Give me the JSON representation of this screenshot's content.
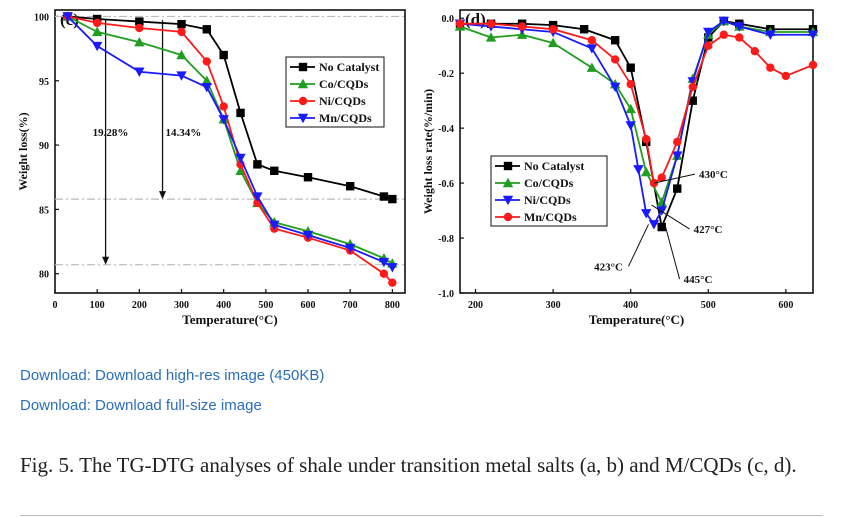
{
  "links": [
    "Download: Download high-res image (450KB)",
    "Download: Download full-size image"
  ],
  "caption": "Fig. 5. The TG-DTG analyses of shale under transition metal salts (a, b) and M/CQDs (c, d).",
  "colors": {
    "No Catalyst": "#000000",
    "Co/CQDs": "#1f9e1f",
    "Ni/CQDs_c": "#ff1a1a",
    "Mn/CQDs_c": "#1a1aff",
    "Ni/CQDs_d": "#1a1aff",
    "Mn/CQDs_d": "#ff1a1a"
  },
  "chart_data": [
    {
      "type": "line",
      "panel_label": "(c)",
      "xlabel": "Temperature(°C)",
      "ylabel": "Weight loss(%)",
      "xlim": [
        0,
        830
      ],
      "ylim": [
        78.5,
        100.5
      ],
      "xticks": [
        0,
        100,
        200,
        300,
        400,
        500,
        600,
        700,
        800
      ],
      "yticks": [
        80,
        85,
        90,
        95,
        100
      ],
      "legend_position": "top-right",
      "series": [
        {
          "name": "No Catalyst",
          "marker": "square",
          "x": [
            30,
            100,
            200,
            300,
            360,
            400,
            440,
            480,
            520,
            600,
            700,
            780,
            800
          ],
          "y": [
            100,
            99.8,
            99.6,
            99.4,
            99.0,
            97.0,
            92.5,
            88.5,
            88.0,
            87.5,
            86.8,
            86.0,
            85.8
          ]
        },
        {
          "name": "Co/CQDs",
          "marker": "triangle-up",
          "x": [
            30,
            100,
            200,
            300,
            360,
            400,
            440,
            480,
            520,
            600,
            700,
            780,
            800
          ],
          "y": [
            100,
            98.8,
            98.0,
            97.0,
            95.0,
            92.0,
            88.0,
            85.5,
            84.0,
            83.3,
            82.3,
            81.2,
            80.8
          ]
        },
        {
          "name": "Ni/CQDs",
          "marker": "circle",
          "x": [
            30,
            100,
            200,
            300,
            360,
            400,
            440,
            480,
            520,
            600,
            700,
            780,
            800
          ],
          "y": [
            100,
            99.5,
            99.1,
            98.8,
            96.5,
            93.0,
            88.5,
            85.5,
            83.5,
            82.8,
            81.8,
            80.0,
            79.3
          ]
        },
        {
          "name": "Mn/CQDs",
          "marker": "triangle-down",
          "x": [
            30,
            100,
            200,
            300,
            360,
            400,
            440,
            480,
            520,
            600,
            700,
            780,
            800
          ],
          "y": [
            100,
            97.7,
            95.7,
            95.4,
            94.5,
            92.0,
            89.0,
            86.0,
            83.8,
            83.0,
            82.0,
            80.9,
            80.5
          ]
        }
      ],
      "annotations": [
        {
          "text": "19.28%",
          "from": [
            120,
            99.8
          ],
          "to": [
            120,
            80.7
          ]
        },
        {
          "text": "14.34%",
          "from": [
            255,
            99.7
          ],
          "to": [
            255,
            85.8
          ]
        }
      ]
    },
    {
      "type": "line",
      "panel_label": "(d)",
      "xlabel": "Temperature(°C)",
      "ylabel": "Weight loss rate(%/min)",
      "xlim": [
        180,
        635
      ],
      "ylim": [
        -1.0,
        0.03
      ],
      "xticks": [
        200,
        300,
        400,
        500,
        600
      ],
      "yticks": [
        0.0,
        -0.2,
        -0.4,
        -0.6,
        -0.8,
        -1.0
      ],
      "ytick_labels": [
        "0.0",
        "-0.2",
        "-0.4",
        "-0.6",
        "-0.8",
        "-1.0"
      ],
      "legend_position": "center-left",
      "series": [
        {
          "name": "No Catalyst",
          "marker": "square",
          "x": [
            180,
            220,
            260,
            300,
            340,
            380,
            400,
            420,
            440,
            460,
            480,
            500,
            520,
            540,
            580,
            635
          ],
          "y": [
            -0.02,
            -0.02,
            -0.02,
            -0.025,
            -0.04,
            -0.08,
            -0.18,
            -0.45,
            -0.76,
            -0.62,
            -0.3,
            -0.07,
            -0.01,
            -0.02,
            -0.04,
            -0.04
          ]
        },
        {
          "name": "Co/CQDs",
          "marker": "triangle-up",
          "x": [
            180,
            220,
            260,
            300,
            350,
            380,
            400,
            420,
            440,
            460,
            480,
            500,
            520,
            540,
            580,
            635
          ],
          "y": [
            -0.03,
            -0.07,
            -0.06,
            -0.09,
            -0.18,
            -0.24,
            -0.33,
            -0.56,
            -0.67,
            -0.5,
            -0.22,
            -0.06,
            -0.01,
            -0.03,
            -0.05,
            -0.05
          ]
        },
        {
          "name": "Ni/CQDs",
          "marker": "triangle-down",
          "x": [
            180,
            220,
            260,
            300,
            350,
            380,
            400,
            410,
            420,
            430,
            440,
            460,
            480,
            500,
            520,
            540,
            580,
            635
          ],
          "y": [
            -0.02,
            -0.03,
            -0.04,
            -0.05,
            -0.11,
            -0.25,
            -0.39,
            -0.55,
            -0.71,
            -0.75,
            -0.7,
            -0.5,
            -0.23,
            -0.05,
            -0.01,
            -0.03,
            -0.06,
            -0.06
          ]
        },
        {
          "name": "Mn/CQDs",
          "marker": "circle",
          "x": [
            180,
            220,
            260,
            300,
            350,
            380,
            400,
            420,
            430,
            440,
            460,
            480,
            500,
            520,
            540,
            560,
            580,
            600,
            635
          ],
          "y": [
            -0.02,
            -0.02,
            -0.03,
            -0.04,
            -0.08,
            -0.15,
            -0.24,
            -0.44,
            -0.6,
            -0.58,
            -0.45,
            -0.25,
            -0.1,
            -0.06,
            -0.07,
            -0.12,
            -0.18,
            -0.21,
            -0.17
          ]
        }
      ],
      "annotations": [
        {
          "text": "430°C",
          "x": 430,
          "y": -0.6
        },
        {
          "text": "427°C",
          "x": 427,
          "y": -0.68
        },
        {
          "text": "423°C",
          "x": 423,
          "y": -0.75
        },
        {
          "text": "445°C",
          "x": 445,
          "y": -0.76
        }
      ]
    }
  ]
}
